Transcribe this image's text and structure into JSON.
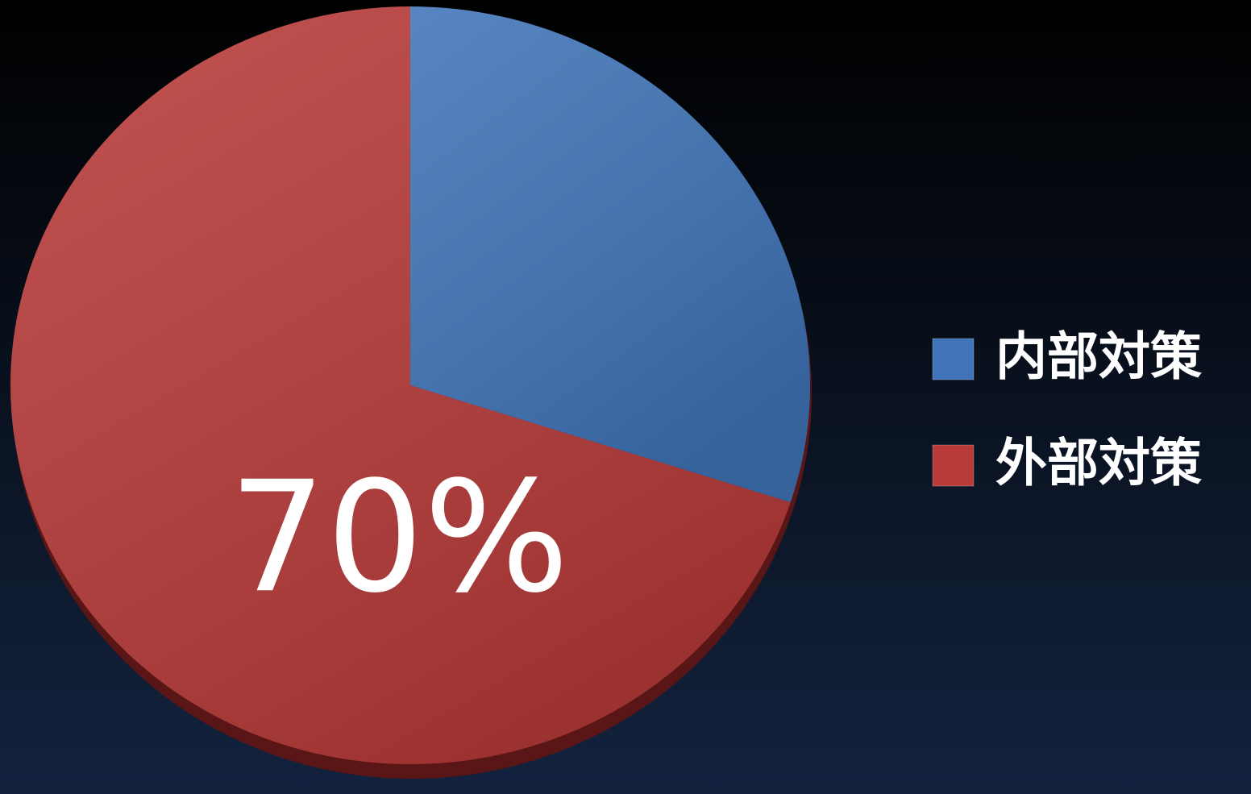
{
  "chart_data": {
    "type": "pie",
    "categories": [
      "内部対策",
      "外部対策"
    ],
    "values": [
      30,
      70
    ],
    "value_labels": [
      null,
      "70%"
    ],
    "colors": [
      "#3f74b8",
      "#b83b39"
    ],
    "legend": "right"
  }
}
